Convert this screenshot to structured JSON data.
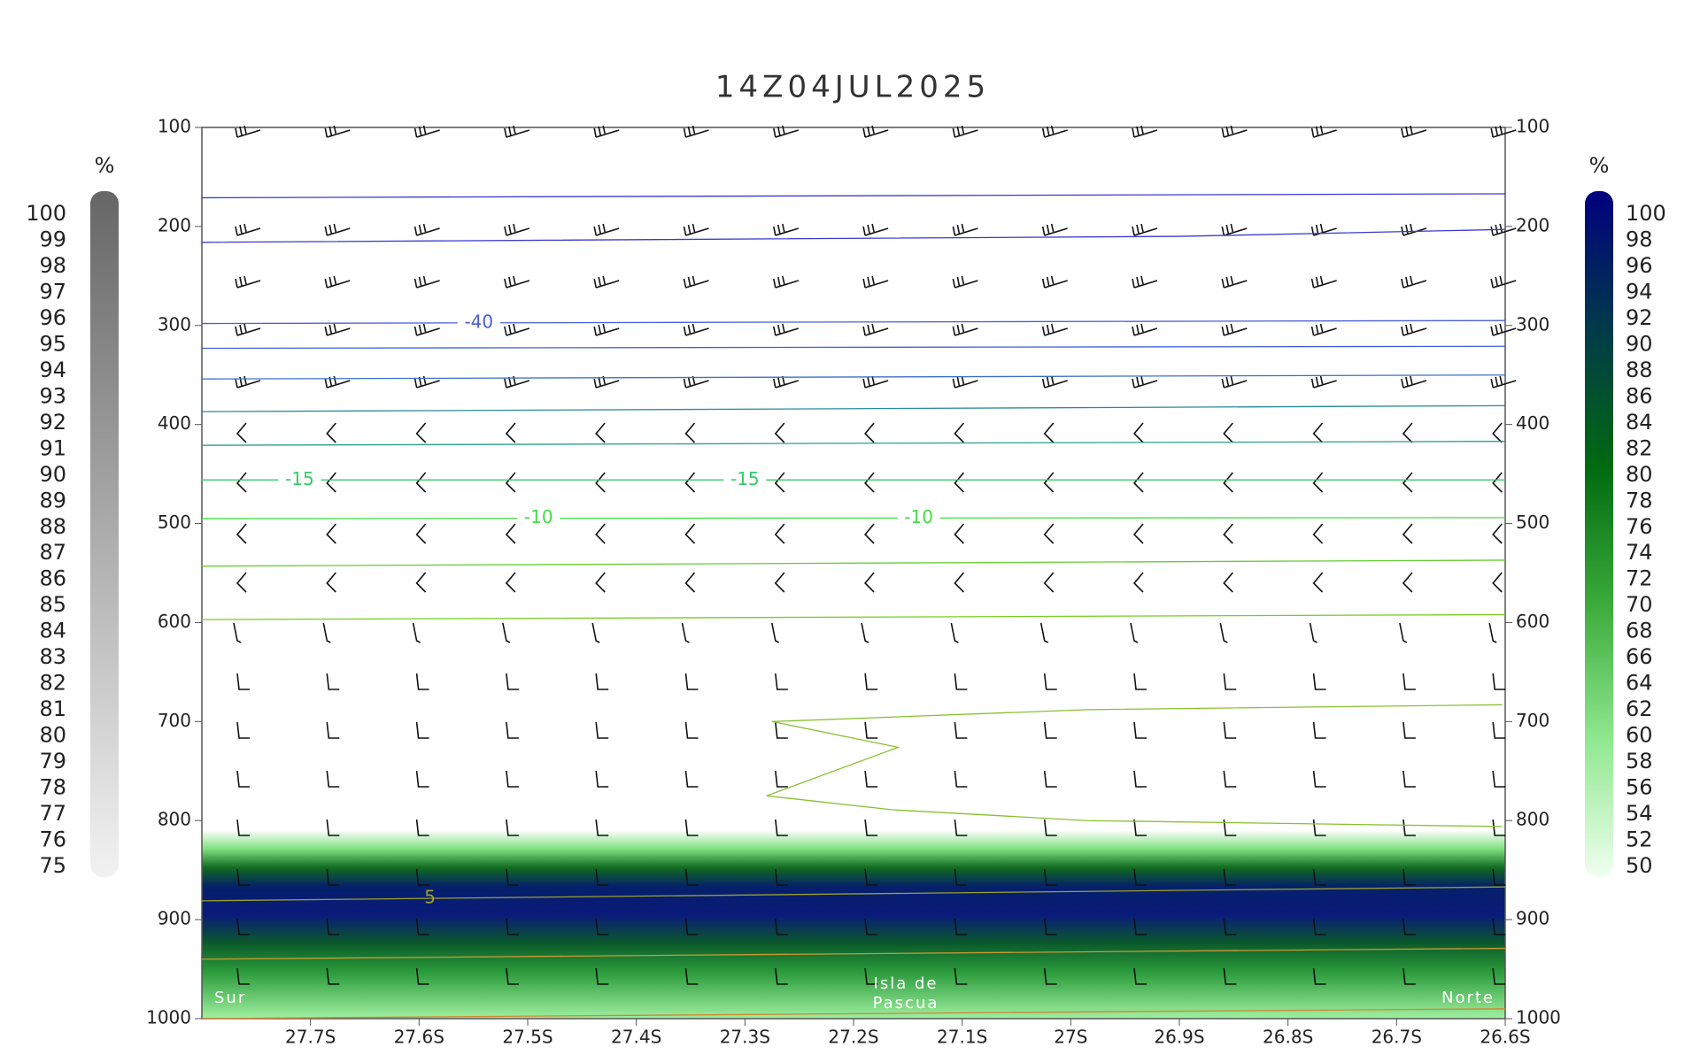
{
  "chart_data": {
    "type": "cross-section",
    "title": "14Z04JUL2025",
    "ylim": [
      100,
      1000
    ],
    "yticks": [
      100,
      200,
      300,
      400,
      500,
      600,
      700,
      800,
      900,
      1000
    ],
    "xlim": [
      -27.8,
      -26.6
    ],
    "xticks": [
      {
        "value": -27.7,
        "label": "27.7S"
      },
      {
        "value": -27.6,
        "label": "27.6S"
      },
      {
        "value": -27.5,
        "label": "27.5S"
      },
      {
        "value": -27.4,
        "label": "27.4S"
      },
      {
        "value": -27.3,
        "label": "27.3S"
      },
      {
        "value": -27.2,
        "label": "27.2S"
      },
      {
        "value": -27.1,
        "label": "27.1S"
      },
      {
        "value": -27,
        "label": "27S"
      },
      {
        "value": -26.9,
        "label": "26.9S"
      },
      {
        "value": -26.8,
        "label": "26.8S"
      },
      {
        "value": -26.7,
        "label": "26.7S"
      },
      {
        "value": -26.6,
        "label": "26.6S"
      }
    ],
    "annotations": [
      "Sur",
      "Isla de",
      "Pascua",
      "Norte"
    ],
    "contours": [
      {
        "color": "#3a3ad0",
        "x": [
          -27.8,
          -26.6
        ],
        "y": [
          171,
          167
        ]
      },
      {
        "color": "#3a3ad0",
        "x": [
          -27.8,
          -26.9,
          -26.6
        ],
        "y": [
          216,
          210,
          203
        ]
      },
      {
        "color": "#4a5fd6",
        "x": [
          -27.8,
          -26.6
        ],
        "y": [
          298,
          295
        ],
        "label": "-40",
        "label_at": [
          -27.545
        ]
      },
      {
        "color": "#3f5fd0",
        "x": [
          -27.8,
          -26.6
        ],
        "y": [
          323,
          321
        ]
      },
      {
        "color": "#3f6fc8",
        "x": [
          -27.8,
          -26.6
        ],
        "y": [
          354,
          350
        ]
      },
      {
        "color": "#2a8a9a",
        "x": [
          -27.8,
          -26.6
        ],
        "y": [
          387,
          381
        ]
      },
      {
        "color": "#2ba08a",
        "x": [
          -27.8,
          -26.6
        ],
        "y": [
          421,
          417
        ]
      },
      {
        "color": "#33cc66",
        "x": [
          -27.8,
          -26.6
        ],
        "y": [
          456,
          456
        ],
        "label": "-15",
        "label_at": [
          -27.71,
          -27.3
        ]
      },
      {
        "color": "#44dd44",
        "x": [
          -27.8,
          -26.6
        ],
        "y": [
          495,
          494
        ],
        "label": "-10",
        "label_at": [
          -27.49,
          -27.14
        ]
      },
      {
        "color": "#66cc33",
        "x": [
          -27.8,
          -26.6
        ],
        "y": [
          543,
          537
        ]
      },
      {
        "color": "#77cc22",
        "x": [
          -27.8,
          -26.6
        ],
        "y": [
          597,
          592
        ]
      },
      {
        "color": "#88c030",
        "x": [
          -26.603,
          -26.985,
          -27.275,
          -27.159,
          -27.28,
          -27.165,
          -26.985,
          -26.603
        ],
        "y": [
          683,
          688,
          700,
          726,
          775,
          789,
          800,
          806
        ]
      },
      {
        "color": "#99a030",
        "x": [
          -27.8,
          -26.6
        ],
        "y": [
          881,
          867
        ],
        "label": "5",
        "label_at": [
          -27.59
        ]
      },
      {
        "color": "#cc9933",
        "x": [
          -27.8,
          -26.6
        ],
        "y": [
          940,
          929
        ]
      },
      {
        "color": "#cc8833",
        "x": [
          -27.8,
          -26.6
        ],
        "y": [
          1000,
          990
        ]
      }
    ],
    "colorbars": [
      {
        "unit": "%",
        "colors": [
          "#666666",
          "#f2f2f2"
        ],
        "ticks": [
          100,
          99,
          98,
          97,
          96,
          95,
          94,
          93,
          92,
          91,
          90,
          89,
          88,
          87,
          86,
          85,
          84,
          83,
          82,
          81,
          80,
          79,
          78,
          77,
          76,
          75
        ]
      },
      {
        "unit": "%",
        "colors": [
          "#00007f",
          "#003a4a",
          "#006a10",
          "#3aaa3a",
          "#8fe88f",
          "#f0fff0"
        ],
        "ticks": [
          100,
          98,
          96,
          94,
          92,
          90,
          88,
          86,
          84,
          82,
          80,
          78,
          76,
          74,
          72,
          70,
          68,
          66,
          64,
          62,
          60,
          58,
          56,
          54,
          52,
          50
        ]
      }
    ]
  }
}
